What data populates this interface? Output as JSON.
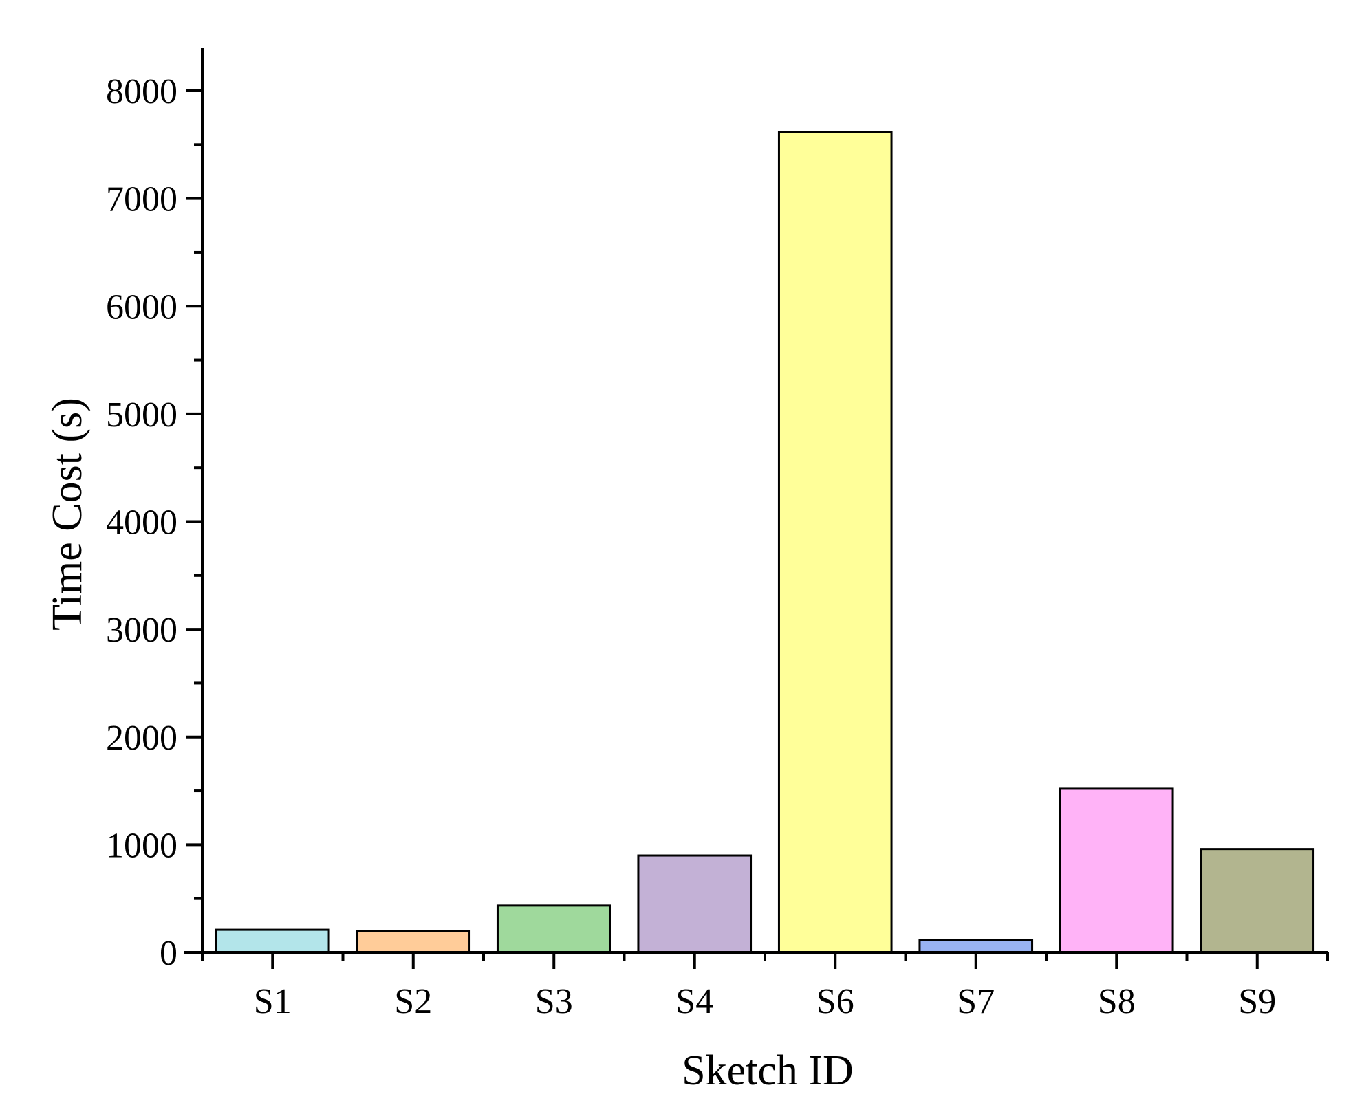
{
  "chart_data": {
    "type": "bar",
    "title": "",
    "xlabel": "Sketch ID",
    "ylabel": "Time Cost (s)",
    "categories": [
      "S1",
      "S2",
      "S3",
      "S4",
      "S6",
      "S7",
      "S8",
      "S9"
    ],
    "values": [
      210,
      200,
      435,
      900,
      7620,
      115,
      1520,
      960
    ],
    "colors": [
      "#b3e5ea",
      "#ffcc99",
      "#9fd99c",
      "#c3b1d6",
      "#ffff99",
      "#99b3f2",
      "#ffb3f7",
      "#b2b58f"
    ],
    "ylim": [
      0,
      8000
    ],
    "yticks": [
      0,
      1000,
      2000,
      3000,
      4000,
      5000,
      6000,
      7000,
      8000
    ],
    "grid": false,
    "legend": "none"
  }
}
